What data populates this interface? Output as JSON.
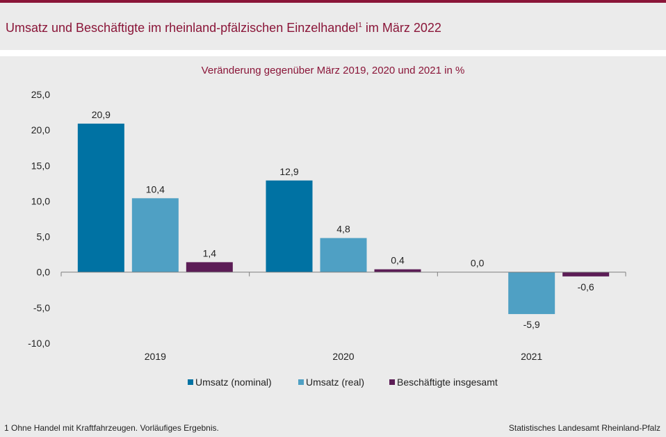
{
  "header": {
    "title_main": "Umsatz und Beschäftigte im rheinland-pfälzischen Einzelhandel",
    "title_sup": "1",
    "title_tail": " im März 2022"
  },
  "chart_data": {
    "type": "bar",
    "subtitle": "Veränderung gegenüber März 2019, 2020 und 2021 in %",
    "categories": [
      "2019",
      "2020",
      "2021"
    ],
    "series": [
      {
        "name": "Umsatz (nominal)",
        "color": "#0072a3",
        "values": [
          20.9,
          12.9,
          0.0
        ],
        "labels": [
          "20,9",
          "12,9",
          "0,0"
        ]
      },
      {
        "name": "Umsatz (real)",
        "color": "#4fa0c4",
        "values": [
          10.4,
          4.8,
          -5.9
        ],
        "labels": [
          "10,4",
          "4,8",
          "-5,9"
        ]
      },
      {
        "name": "Beschäftigte insgesamt",
        "color": "#5c1d56",
        "values": [
          1.4,
          0.4,
          -0.6
        ],
        "labels": [
          "1,4",
          "0,4",
          "-0,6"
        ]
      }
    ],
    "ylim": [
      -10,
      25
    ],
    "yticks": [
      25,
      20,
      15,
      10,
      5,
      0,
      -5,
      -10
    ],
    "ytick_labels": [
      "25,0",
      "20,0",
      "15,0",
      "10,0",
      "5,0",
      "0,0",
      "-5,0",
      "-10,0"
    ],
    "grid": false,
    "legend": "bottom"
  },
  "footer": {
    "footnote": "1 Ohne Handel mit Kraftfahrzeugen. Vorläufiges Ergebnis.",
    "source": "Statistisches Landesamt Rheinland-Pfalz"
  }
}
